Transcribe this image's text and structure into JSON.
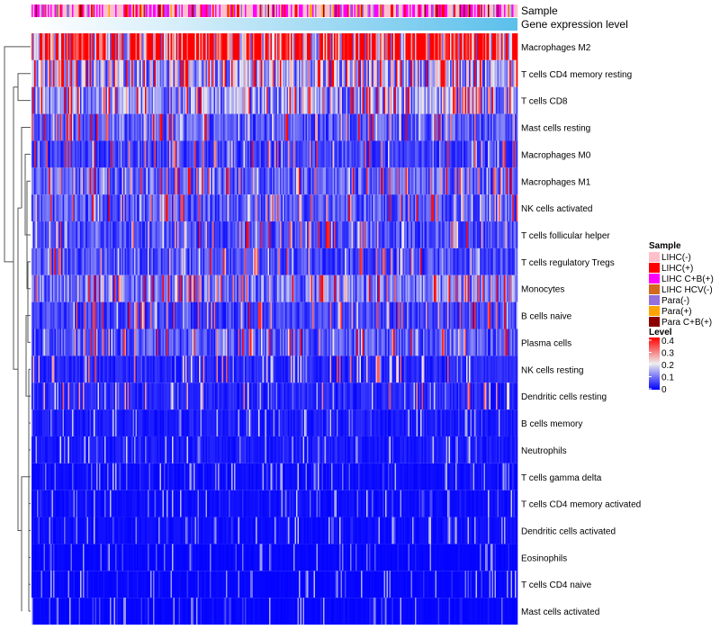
{
  "chart_data": {
    "type": "heatmap",
    "annotation_labels": [
      "Sample",
      "Gene expression level"
    ],
    "rows": [
      "Macrophages M2",
      "T cells CD4 memory resting",
      "T cells CD8",
      "Mast cells resting",
      "Macrophages M0",
      "Macrophages M1",
      "NK cells activated",
      "T cells follicular helper",
      "T cells regulatory  Tregs",
      "Monocytes",
      "B cells naive",
      "Plasma cells",
      "NK cells resting",
      "Dendritic cells resting",
      "B cells memory",
      "Neutrophils",
      "T cells gamma delta",
      "T cells CD4 memory activated",
      "Dendritic cells activated",
      "Eosinophils",
      "T cells CD4 naive",
      "Mast cells activated"
    ],
    "row_mean_levels": [
      0.33,
      0.15,
      0.12,
      0.07,
      0.05,
      0.08,
      0.07,
      0.06,
      0.06,
      0.1,
      0.05,
      0.07,
      0.03,
      0.03,
      0.02,
      0.02,
      0.01,
      0.01,
      0.01,
      0.005,
      0.005,
      0.005
    ],
    "n_samples": 360,
    "legend_sample": {
      "title": "Sample",
      "entries": [
        {
          "label": "LIHC(-)",
          "color": "#FFC0CB"
        },
        {
          "label": "LIHC(+)",
          "color": "#FF0000"
        },
        {
          "label": "LIHC C+B(+)",
          "color": "#FF00FF"
        },
        {
          "label": "LIHC HCV(-)",
          "color": "#D2691E"
        },
        {
          "label": "Para(-)",
          "color": "#9370DB"
        },
        {
          "label": "Para(+)",
          "color": "#FFA500"
        },
        {
          "label": "Para C+B(+)",
          "color": "#8B0000"
        }
      ],
      "weights": [
        0.45,
        0.12,
        0.25,
        0.03,
        0.08,
        0.04,
        0.03
      ]
    },
    "legend_level": {
      "title": "Level",
      "ticks": [
        "0.4",
        "0.3",
        "0.2",
        "0.1",
        "0"
      ],
      "range": [
        0,
        0.4
      ],
      "colors": {
        "low": "#0000FF",
        "mid": "#EEEEEE",
        "high": "#FF0000"
      }
    },
    "gene_expression_colors": {
      "low": "#FFFFFF",
      "high": "#5BC0EB"
    }
  }
}
